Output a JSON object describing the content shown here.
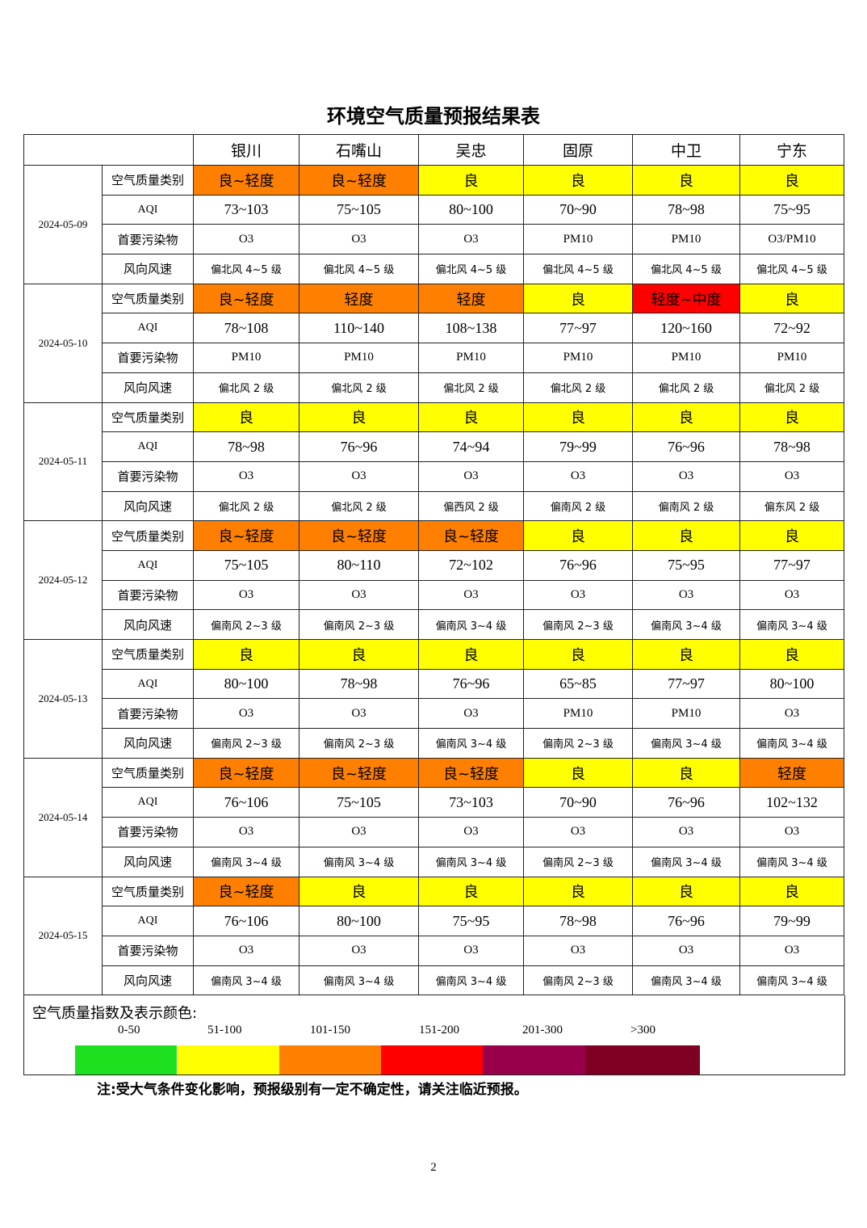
{
  "title": "环境空气质量预报结果表",
  "cities": [
    "银川",
    "石嘴山",
    "吴忠",
    "固原",
    "中卫",
    "宁东"
  ],
  "row_labels": {
    "category": "空气质量类别",
    "aqi": "AQI",
    "pollutant": "首要污染物",
    "wind": "风向风速"
  },
  "category_colors": {
    "良": "#FFFF00",
    "良~轻度": "#FF8000",
    "轻度": "#FF8000",
    "轻度~中度": "#FF0000"
  },
  "days": [
    {
      "date": "2024-05-09",
      "category": [
        "良~轻度",
        "良~轻度",
        "良",
        "良",
        "良",
        "良"
      ],
      "aqi": [
        "73~103",
        "75~105",
        "80~100",
        "70~90",
        "78~98",
        "75~95"
      ],
      "pollutant": [
        "O3",
        "O3",
        "O3",
        "PM10",
        "PM10",
        "O3/PM10"
      ],
      "wind": [
        "偏北风 4~5 级",
        "偏北风 4~5 级",
        "偏北风 4~5 级",
        "偏北风 4~5 级",
        "偏北风 4~5 级",
        "偏北风 4~5 级"
      ]
    },
    {
      "date": "2024-05-10",
      "category": [
        "良~轻度",
        "轻度",
        "轻度",
        "良",
        "轻度~中度",
        "良"
      ],
      "aqi": [
        "78~108",
        "110~140",
        "108~138",
        "77~97",
        "120~160",
        "72~92"
      ],
      "pollutant": [
        "PM10",
        "PM10",
        "PM10",
        "PM10",
        "PM10",
        "PM10"
      ],
      "wind": [
        "偏北风 2 级",
        "偏北风 2 级",
        "偏北风 2 级",
        "偏北风 2 级",
        "偏北风 2 级",
        "偏北风 2 级"
      ]
    },
    {
      "date": "2024-05-11",
      "category": [
        "良",
        "良",
        "良",
        "良",
        "良",
        "良"
      ],
      "aqi": [
        "78~98",
        "76~96",
        "74~94",
        "79~99",
        "76~96",
        "78~98"
      ],
      "pollutant": [
        "O3",
        "O3",
        "O3",
        "O3",
        "O3",
        "O3"
      ],
      "wind": [
        "偏北风 2 级",
        "偏北风 2 级",
        "偏西风 2 级",
        "偏南风 2 级",
        "偏南风 2 级",
        "偏东风 2 级"
      ]
    },
    {
      "date": "2024-05-12",
      "category": [
        "良~轻度",
        "良~轻度",
        "良~轻度",
        "良",
        "良",
        "良"
      ],
      "aqi": [
        "75~105",
        "80~110",
        "72~102",
        "76~96",
        "75~95",
        "77~97"
      ],
      "pollutant": [
        "O3",
        "O3",
        "O3",
        "O3",
        "O3",
        "O3"
      ],
      "wind": [
        "偏南风 2~3 级",
        "偏南风 2~3 级",
        "偏南风 3~4 级",
        "偏南风 2~3 级",
        "偏南风 3~4 级",
        "偏南风 3~4 级"
      ]
    },
    {
      "date": "2024-05-13",
      "category": [
        "良",
        "良",
        "良",
        "良",
        "良",
        "良"
      ],
      "aqi": [
        "80~100",
        "78~98",
        "76~96",
        "65~85",
        "77~97",
        "80~100"
      ],
      "pollutant": [
        "O3",
        "O3",
        "O3",
        "PM10",
        "PM10",
        "O3"
      ],
      "wind": [
        "偏南风 2~3 级",
        "偏南风 2~3 级",
        "偏南风 3~4 级",
        "偏南风 2~3 级",
        "偏南风 3~4 级",
        "偏南风 3~4 级"
      ]
    },
    {
      "date": "2024-05-14",
      "category": [
        "良~轻度",
        "良~轻度",
        "良~轻度",
        "良",
        "良",
        "轻度"
      ],
      "aqi": [
        "76~106",
        "75~105",
        "73~103",
        "70~90",
        "76~96",
        "102~132"
      ],
      "pollutant": [
        "O3",
        "O3",
        "O3",
        "O3",
        "O3",
        "O3"
      ],
      "wind": [
        "偏南风 3~4 级",
        "偏南风 3~4 级",
        "偏南风 3~4 级",
        "偏南风 2~3 级",
        "偏南风 3~4 级",
        "偏南风 3~4 级"
      ]
    },
    {
      "date": "2024-05-15",
      "category": [
        "良~轻度",
        "良",
        "良",
        "良",
        "良",
        "良"
      ],
      "aqi": [
        "76~106",
        "80~100",
        "75~95",
        "78~98",
        "76~96",
        "79~99"
      ],
      "pollutant": [
        "O3",
        "O3",
        "O3",
        "O3",
        "O3",
        "O3"
      ],
      "wind": [
        "偏南风 3~4 级",
        "偏南风 3~4 级",
        "偏南风 3~4 级",
        "偏南风 2~3 级",
        "偏南风 3~4 级",
        "偏南风 3~4 级"
      ]
    }
  ],
  "legend": {
    "title": "空气质量指数及表示颜色:",
    "items": [
      {
        "range": "0-50",
        "color": "#1FE01F"
      },
      {
        "range": "51-100",
        "color": "#FFFF00"
      },
      {
        "range": "101-150",
        "color": "#FF8000"
      },
      {
        "range": "151-200",
        "color": "#FF0000"
      },
      {
        "range": "201-300",
        "color": "#99004C"
      },
      {
        "range": ">300",
        "color": "#7E0023"
      }
    ]
  },
  "note": "注:受大气条件变化影响，预报级别有一定不确定性，请关注临近预报。",
  "page_number": "2"
}
